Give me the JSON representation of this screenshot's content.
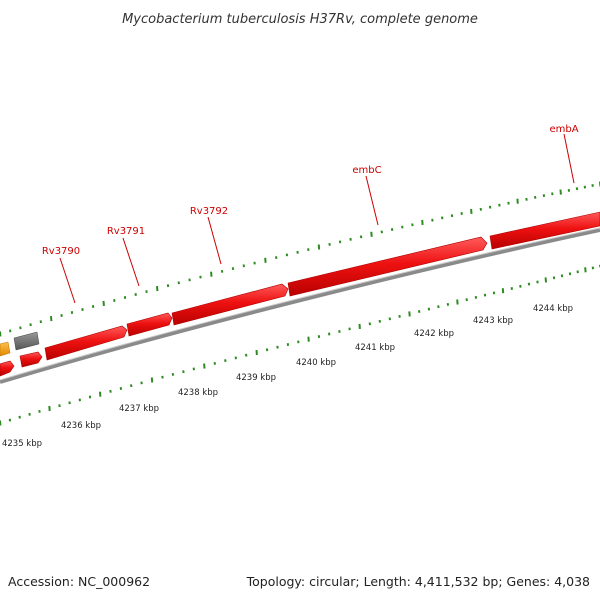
{
  "title": "Mycobacterium tuberculosis H37Rv, complete genome",
  "accession": "Accession: NC_000962",
  "summary": "Topology: circular; Length: 4,411,532 bp; Genes: 4,038",
  "colors": {
    "gene_fill": "#ee1111",
    "gene_stroke": "#bb0000",
    "other_feature": "#777777",
    "orange_feature": "#f5a623",
    "backbone": "#888888",
    "tick": "#2e8b22",
    "label": "#cc0000"
  },
  "tick_labels": [
    "4235 kbp",
    "4236 kbp",
    "4237 kbp",
    "4238 kbp",
    "4239 kbp",
    "4240 kbp",
    "4241 kbp",
    "4242 kbp",
    "4243 kbp",
    "4244 kbp"
  ],
  "gene_labels": [
    "Rv3790",
    "Rv3791",
    "Rv3792",
    "embC",
    "embA"
  ]
}
